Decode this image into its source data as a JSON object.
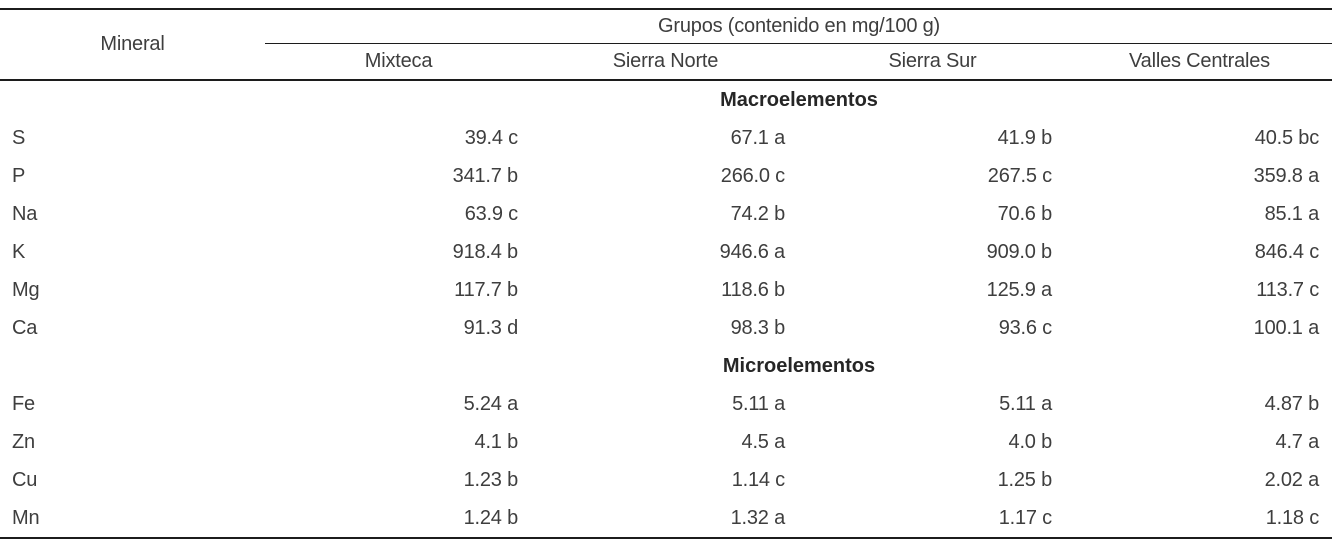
{
  "table": {
    "mineral_header": "Mineral",
    "group_header": "Grupos (contenido en mg/100 g)",
    "columns": [
      "Mixteca",
      "Sierra Norte",
      "Sierra Sur",
      "Valles Centrales"
    ],
    "sections": [
      {
        "title": "Macroelementos",
        "rows": [
          {
            "mineral": "S",
            "values": [
              "39.4 c",
              "67.1 a",
              "41.9 b",
              "40.5 bc"
            ]
          },
          {
            "mineral": "P",
            "values": [
              "341.7 b",
              "266.0 c",
              "267.5 c",
              "359.8 a"
            ]
          },
          {
            "mineral": "Na",
            "values": [
              "63.9 c",
              "74.2 b",
              "70.6 b",
              "85.1 a"
            ]
          },
          {
            "mineral": "K",
            "values": [
              "918.4 b",
              "946.6 a",
              "909.0 b",
              "846.4 c"
            ]
          },
          {
            "mineral": "Mg",
            "values": [
              "117.7 b",
              "118.6 b",
              "125.9 a",
              "113.7 c"
            ]
          },
          {
            "mineral": "Ca",
            "values": [
              "91.3 d",
              "98.3 b",
              "93.6 c",
              "100.1 a"
            ]
          }
        ]
      },
      {
        "title": "Microelementos",
        "rows": [
          {
            "mineral": "Fe",
            "values": [
              "5.24 a",
              "5.11 a",
              "5.11 a",
              "4.87 b"
            ]
          },
          {
            "mineral": "Zn",
            "values": [
              "4.1 b",
              "4.5 a",
              "4.0 b",
              "4.7 a"
            ]
          },
          {
            "mineral": "Cu",
            "values": [
              "1.23 b",
              "1.14 c",
              "1.25 b",
              "2.02 a"
            ]
          },
          {
            "mineral": "Mn",
            "values": [
              "1.24 b",
              "1.32 a",
              "1.17 c",
              "1.18 c"
            ]
          }
        ]
      }
    ],
    "unit_note": "mg/100 g"
  },
  "colors": {
    "text": "#3e3e3e",
    "section_heading": "#262626",
    "rule": "#1c1c1c",
    "background": "#ffffff"
  }
}
